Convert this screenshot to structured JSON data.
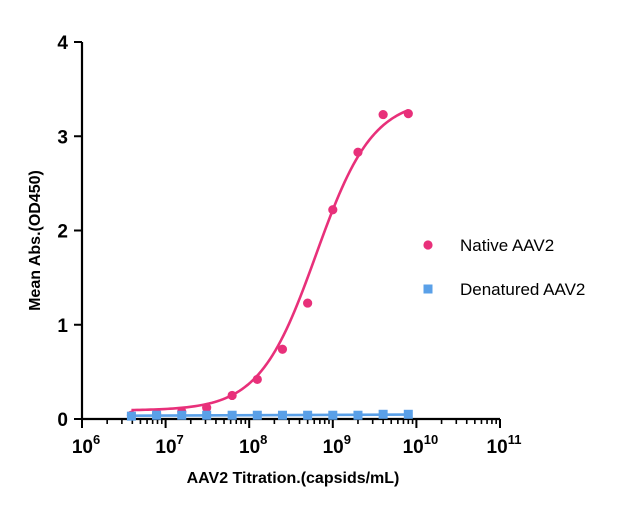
{
  "chart_data": {
    "type": "scatter",
    "xlabel": "AAV2 Titration.(capsids/mL)",
    "ylabel": "Mean Abs.(OD450)",
    "xscale": "log",
    "xlim": [
      1000000,
      100000000000
    ],
    "ylim": [
      0,
      4
    ],
    "yticks": [
      0,
      1,
      2,
      3,
      4
    ],
    "xtick_base": "10",
    "xticks": [
      {
        "value": 1000000,
        "exponent": "6"
      },
      {
        "value": 10000000,
        "exponent": "7"
      },
      {
        "value": 100000000,
        "exponent": "8"
      },
      {
        "value": 1000000000,
        "exponent": "9"
      },
      {
        "value": 10000000000,
        "exponent": "10"
      },
      {
        "value": 100000000000,
        "exponent": "11"
      }
    ],
    "grid": false,
    "legend_position": "right",
    "series": [
      {
        "name": "Native AAV2",
        "color": "#e8307a",
        "marker": "circle",
        "fit": "sigmoid",
        "x": [
          3900000.0,
          7800000.0,
          15600000.0,
          31000000.0,
          62500000.0,
          125000000.0,
          250000000.0,
          500000000.0,
          1000000000.0,
          2000000000.0,
          4000000000.0,
          8000000000.0
        ],
        "y": [
          0.04,
          0.06,
          0.08,
          0.12,
          0.25,
          0.42,
          0.74,
          1.23,
          2.22,
          2.83,
          3.23,
          3.24
        ]
      },
      {
        "name": "Denatured AAV2",
        "color": "#5aa0e8",
        "marker": "square",
        "fit": "linear",
        "x": [
          3900000.0,
          7800000.0,
          15600000.0,
          31000000.0,
          62500000.0,
          125000000.0,
          250000000.0,
          500000000.0,
          1000000000.0,
          2000000000.0,
          4000000000.0,
          8000000000.0
        ],
        "y": [
          0.03,
          0.04,
          0.04,
          0.04,
          0.04,
          0.04,
          0.04,
          0.04,
          0.04,
          0.04,
          0.05,
          0.05
        ]
      }
    ]
  }
}
